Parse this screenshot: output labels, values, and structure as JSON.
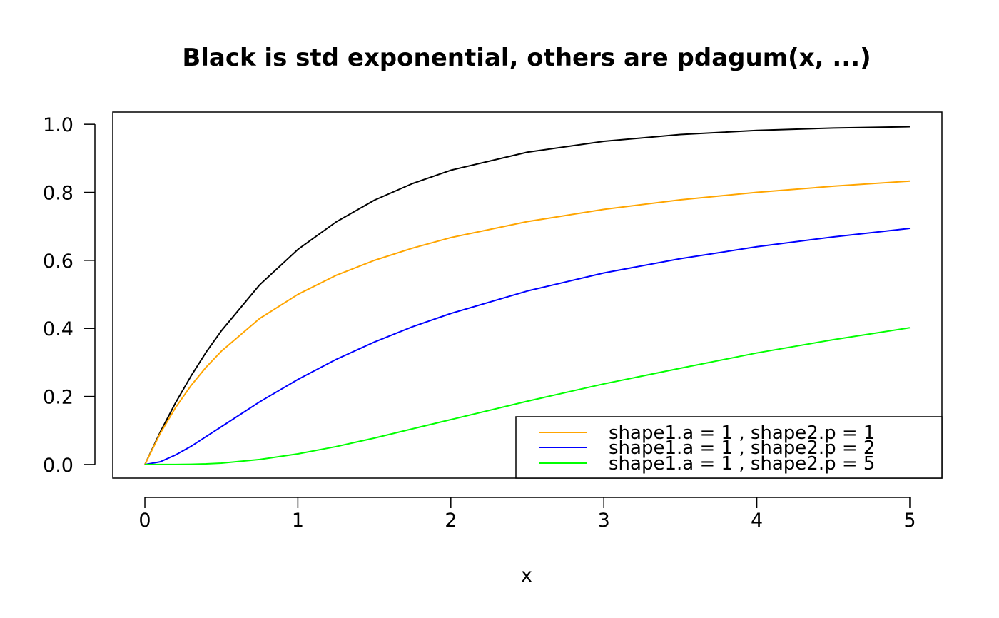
{
  "chart_data": {
    "type": "line",
    "title": "Black is std exponential, others are pdagum(x, ...)",
    "xlabel": "x",
    "ylabel": "",
    "xlim": [
      -0.21,
      5.21
    ],
    "ylim": [
      -0.04,
      1.036
    ],
    "x_ticks": [
      "0",
      "1",
      "2",
      "3",
      "4",
      "5"
    ],
    "y_ticks": [
      "0.0",
      "0.2",
      "0.4",
      "0.6",
      "0.8",
      "1.0"
    ],
    "grid": false,
    "legend_position": "bottom-right",
    "x": [
      0,
      0.1,
      0.2,
      0.3,
      0.4,
      0.5,
      0.75,
      1,
      1.25,
      1.5,
      1.75,
      2,
      2.5,
      3,
      3.5,
      4,
      4.5,
      5
    ],
    "series": [
      {
        "name": "",
        "color": "#000000",
        "values": [
          0,
          0.095,
          0.181,
          0.259,
          0.33,
          0.393,
          0.528,
          0.632,
          0.713,
          0.777,
          0.826,
          0.865,
          0.918,
          0.95,
          0.97,
          0.982,
          0.989,
          0.993
        ]
      },
      {
        "name": "shape1.a = 1 , shape2.p = 1",
        "color": "#FFA500",
        "values": [
          0,
          0.091,
          0.167,
          0.231,
          0.286,
          0.333,
          0.429,
          0.5,
          0.556,
          0.6,
          0.636,
          0.667,
          0.714,
          0.75,
          0.778,
          0.8,
          0.818,
          0.833
        ]
      },
      {
        "name": "shape1.a = 1 , shape2.p = 2",
        "color": "#0000FF",
        "values": [
          0,
          0.008,
          0.028,
          0.053,
          0.082,
          0.111,
          0.184,
          0.25,
          0.309,
          0.36,
          0.405,
          0.444,
          0.51,
          0.563,
          0.605,
          0.64,
          0.669,
          0.694
        ]
      },
      {
        "name": "shape1.a = 1 , shape2.p = 5",
        "color": "#00FF00",
        "values": [
          0,
          6e-06,
          0.00013,
          0.00065,
          0.00186,
          0.0041,
          0.0147,
          0.0313,
          0.0527,
          0.0778,
          0.105,
          0.132,
          0.186,
          0.237,
          0.283,
          0.328,
          0.367,
          0.402
        ]
      }
    ]
  }
}
